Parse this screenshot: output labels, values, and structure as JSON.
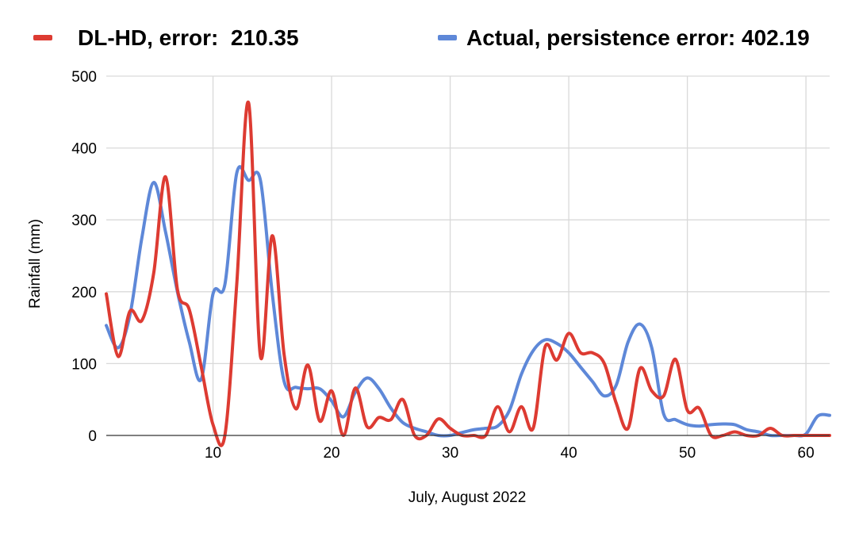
{
  "chart_data": {
    "type": "line",
    "xlabel": "July, August 2022",
    "ylabel": "Rainfall (mm)",
    "xlim": [
      1,
      62
    ],
    "ylim": [
      0,
      500
    ],
    "x_ticks": [
      10,
      20,
      30,
      40,
      50,
      60
    ],
    "y_ticks": [
      0,
      100,
      200,
      300,
      400,
      500
    ],
    "grid": true,
    "legend_position": "top",
    "x": [
      1,
      2,
      3,
      4,
      5,
      6,
      7,
      8,
      9,
      10,
      11,
      12,
      13,
      14,
      15,
      16,
      17,
      18,
      19,
      20,
      21,
      22,
      23,
      24,
      25,
      26,
      27,
      28,
      29,
      30,
      31,
      32,
      33,
      34,
      35,
      36,
      37,
      38,
      39,
      40,
      41,
      42,
      43,
      44,
      45,
      46,
      47,
      48,
      49,
      50,
      51,
      52,
      53,
      54,
      55,
      56,
      57,
      58,
      59,
      60,
      61,
      62
    ],
    "series": [
      {
        "name": "DL-HD, error:  210.35",
        "color": "#dd3b32",
        "values": [
          197,
          110,
          173,
          160,
          226,
          360,
          203,
          175,
          96,
          15,
          0,
          210,
          463,
          110,
          278,
          112,
          37,
          98,
          20,
          62,
          0,
          66,
          12,
          25,
          22,
          50,
          0,
          0,
          23,
          10,
          0,
          0,
          0,
          40,
          5,
          40,
          10,
          123,
          105,
          142,
          115,
          115,
          100,
          45,
          10,
          93,
          62,
          55,
          106,
          35,
          38,
          0,
          0,
          5,
          0,
          0,
          10,
          0,
          0,
          0,
          0,
          0
        ]
      },
      {
        "name": "Actual, persistence error: 402.19",
        "color": "#5e88d8",
        "values": [
          153,
          122,
          168,
          275,
          352,
          283,
          200,
          130,
          78,
          197,
          210,
          365,
          355,
          355,
          197,
          75,
          67,
          65,
          65,
          48,
          26,
          60,
          80,
          65,
          38,
          18,
          10,
          5,
          0,
          0,
          4,
          8,
          10,
          13,
          35,
          85,
          118,
          133,
          128,
          115,
          95,
          75,
          55,
          70,
          130,
          155,
          122,
          30,
          22,
          15,
          13,
          15,
          16,
          15,
          8,
          5,
          0,
          0,
          0,
          2,
          27,
          28
        ]
      }
    ]
  }
}
